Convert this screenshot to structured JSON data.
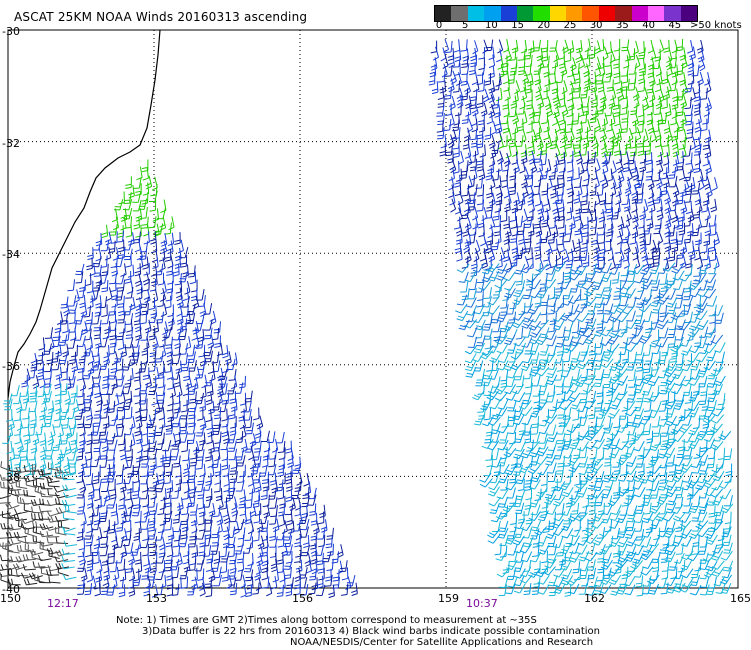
{
  "title": "ASCAT 25KM NOAA Winds 20160313 ascending",
  "colorbar": {
    "colors": [
      "#222222",
      "#6e6e6e",
      "#00bfe6",
      "#00a0f0",
      "#1a3fd6",
      "#009933",
      "#22dd00",
      "#ffd700",
      "#ff9900",
      "#ff5500",
      "#ee0000",
      "#9b1b1b",
      "#cc00cc",
      "#ff66ff",
      "#7a33cc",
      "#4b0080"
    ],
    "labels": [
      "0",
      "5",
      "10",
      "15",
      "20",
      "25",
      "30",
      "35",
      "40",
      "45"
    ],
    "unit": ">50 knots"
  },
  "map": {
    "lat_labels": [
      "-30",
      "-32",
      "-34",
      "-36",
      "-38",
      "-40"
    ],
    "lon_labels": [
      "150",
      "153",
      "156",
      "159",
      "162",
      "165"
    ],
    "times": [
      "12:17",
      "10:37"
    ]
  },
  "notes": {
    "line1": "Note: 1) Times are GMT 2)Times along bottom correspond to measurement at ~35S",
    "line2": "3)Data buffer is 22 hrs from 20160313 4) Black wind barbs indicate possible contamination",
    "line3": "NOAA/NESDIS/Center for Satellite Applications and Research"
  }
}
